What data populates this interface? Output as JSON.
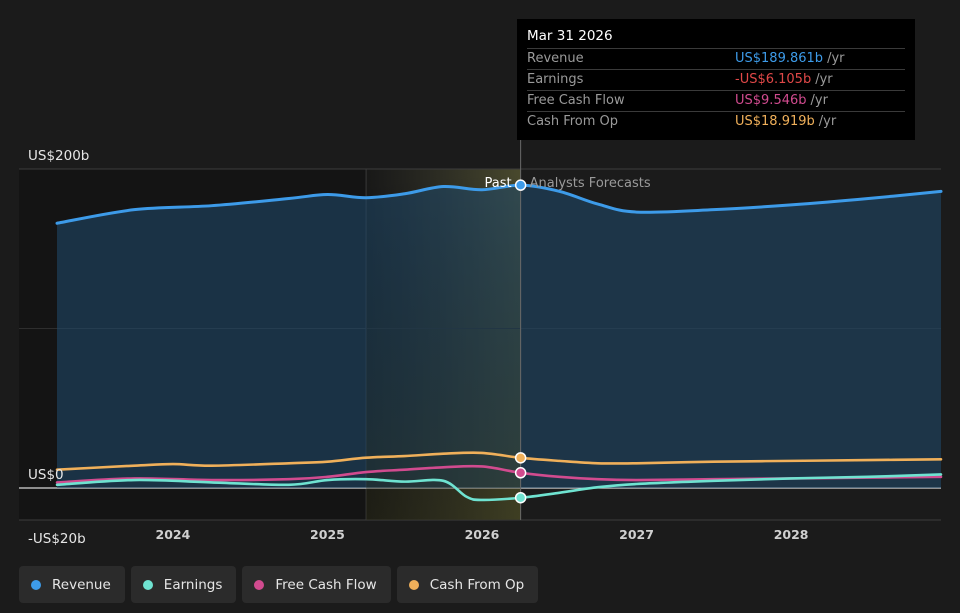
{
  "chart_data": {
    "type": "area",
    "y_axis": {
      "min": -20,
      "max": 200,
      "labels": [
        "US$200b",
        "US$0",
        "-US$20b"
      ],
      "label_values": [
        200,
        0,
        -20
      ]
    },
    "x_axis": {
      "range": [
        2023.25,
        2028.97
      ],
      "ticks": [
        "2024",
        "2025",
        "2026",
        "2027",
        "2028"
      ],
      "tick_values": [
        2024,
        2025,
        2026,
        2027,
        2028
      ]
    },
    "divider": {
      "x": 2026.25,
      "past_label": "Past",
      "forecast_label": "Analysts Forecasts"
    },
    "highlight_range": [
      2025.25,
      2026.25
    ],
    "series": [
      {
        "name": "Revenue",
        "color": "#3d9be9",
        "points": [
          [
            2023.25,
            166
          ],
          [
            2023.75,
            174.5
          ],
          [
            2024.25,
            177
          ],
          [
            2024.75,
            181.5
          ],
          [
            2025.0,
            184
          ],
          [
            2025.25,
            182
          ],
          [
            2025.5,
            184.5
          ],
          [
            2025.75,
            189
          ],
          [
            2026.0,
            187
          ],
          [
            2026.25,
            189.861
          ],
          [
            2026.5,
            186
          ],
          [
            2026.75,
            178
          ],
          [
            2027.0,
            173
          ],
          [
            2027.5,
            174.5
          ],
          [
            2028.0,
            177.5
          ],
          [
            2028.5,
            181.5
          ],
          [
            2028.97,
            186
          ]
        ]
      },
      {
        "name": "Earnings",
        "color": "#6fe3d1",
        "points": [
          [
            2023.25,
            2
          ],
          [
            2023.75,
            5
          ],
          [
            2024.25,
            3.5
          ],
          [
            2024.75,
            2
          ],
          [
            2025.0,
            5
          ],
          [
            2025.25,
            5.5
          ],
          [
            2025.5,
            4
          ],
          [
            2025.75,
            4.5
          ],
          [
            2025.9,
            -5.5
          ],
          [
            2026.0,
            -7.5
          ],
          [
            2026.25,
            -6.105
          ],
          [
            2026.5,
            -3
          ],
          [
            2026.75,
            0.5
          ],
          [
            2027.0,
            2.5
          ],
          [
            2027.5,
            4.5
          ],
          [
            2028.0,
            6
          ],
          [
            2028.5,
            7
          ],
          [
            2028.97,
            8.5
          ]
        ]
      },
      {
        "name": "Free Cash Flow",
        "color": "#d14b8f",
        "points": [
          [
            2023.25,
            3.5
          ],
          [
            2023.75,
            6
          ],
          [
            2024.25,
            5
          ],
          [
            2024.75,
            5.5
          ],
          [
            2025.0,
            7
          ],
          [
            2025.25,
            10
          ],
          [
            2025.5,
            11.5
          ],
          [
            2025.75,
            13
          ],
          [
            2026.0,
            13.5
          ],
          [
            2026.25,
            9.546
          ],
          [
            2026.5,
            7
          ],
          [
            2026.75,
            5.5
          ],
          [
            2027.0,
            5
          ],
          [
            2027.5,
            5.5
          ],
          [
            2028.0,
            6
          ],
          [
            2028.5,
            6.5
          ],
          [
            2028.97,
            7
          ]
        ]
      },
      {
        "name": "Cash From Op",
        "color": "#f0b05a",
        "points": [
          [
            2023.25,
            11.5
          ],
          [
            2023.75,
            14
          ],
          [
            2024.0,
            15
          ],
          [
            2024.25,
            14
          ],
          [
            2024.75,
            15.5
          ],
          [
            2025.0,
            16.5
          ],
          [
            2025.25,
            19
          ],
          [
            2025.5,
            20
          ],
          [
            2025.75,
            21.5
          ],
          [
            2026.0,
            22
          ],
          [
            2026.25,
            18.919
          ],
          [
            2026.5,
            17
          ],
          [
            2026.75,
            15.5
          ],
          [
            2027.0,
            15.5
          ],
          [
            2027.5,
            16.5
          ],
          [
            2028.0,
            17
          ],
          [
            2028.5,
            17.5
          ],
          [
            2028.97,
            18
          ]
        ]
      }
    ]
  },
  "tooltip": {
    "date": "Mar 31 2026",
    "rows": [
      {
        "label": "Revenue",
        "value": "US$189.861b",
        "unit": "/yr",
        "color": "#3d9be9"
      },
      {
        "label": "Earnings",
        "value": "-US$6.105b",
        "unit": "/yr",
        "color": "#e04848"
      },
      {
        "label": "Free Cash Flow",
        "value": "US$9.546b",
        "unit": "/yr",
        "color": "#d14b8f"
      },
      {
        "label": "Cash From Op",
        "value": "US$18.919b",
        "unit": "/yr",
        "color": "#f0b05a"
      }
    ]
  },
  "legend": [
    {
      "label": "Revenue",
      "color": "#3d9be9"
    },
    {
      "label": "Earnings",
      "color": "#6fe3d1"
    },
    {
      "label": "Free Cash Flow",
      "color": "#d14b8f"
    },
    {
      "label": "Cash From Op",
      "color": "#f0b05a"
    }
  ]
}
